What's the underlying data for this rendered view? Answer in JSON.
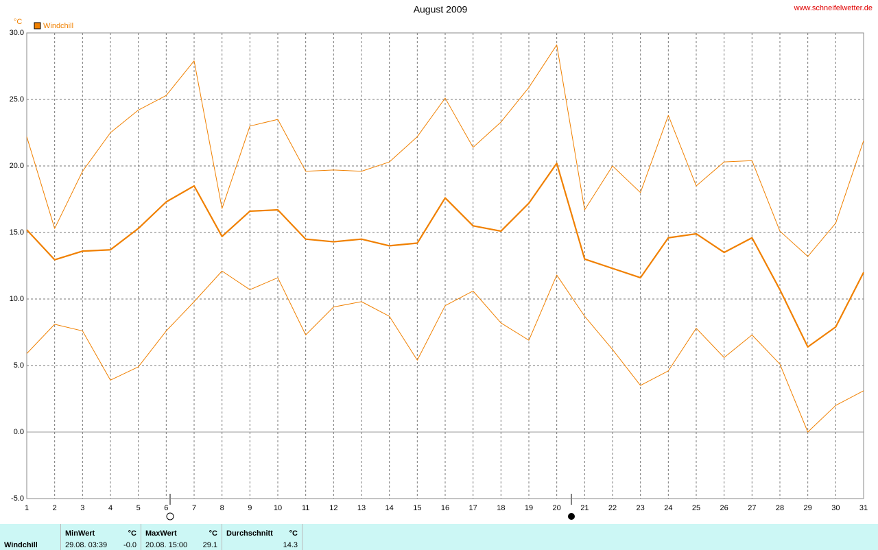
{
  "chart_data": {
    "type": "line",
    "title": "August 2009",
    "source": "www.schneifelwetter.de",
    "y_label": "°C",
    "x": [
      1,
      2,
      3,
      4,
      5,
      6,
      7,
      8,
      9,
      10,
      11,
      12,
      13,
      14,
      15,
      16,
      17,
      18,
      19,
      20,
      21,
      22,
      23,
      24,
      25,
      26,
      27,
      28,
      29,
      30,
      31
    ],
    "series": [
      {
        "name": "Windchill",
        "color": "#f08000",
        "values": [
          15.2,
          12.95,
          13.6,
          13.7,
          15.3,
          17.3,
          18.5,
          14.7,
          16.6,
          16.7,
          14.5,
          14.3,
          14.5,
          14.0,
          14.2,
          17.6,
          15.5,
          15.1,
          17.2,
          20.2,
          13.0,
          12.3,
          11.6,
          14.6,
          14.9,
          13.5,
          14.6,
          10.7,
          6.4,
          7.9,
          12.0
        ]
      },
      {
        "color": "#f08000",
        "values": [
          22.2,
          15.3,
          19.6,
          22.5,
          24.2,
          25.3,
          27.9,
          16.8,
          23.0,
          23.5,
          19.6,
          19.7,
          19.6,
          20.3,
          22.2,
          25.1,
          21.4,
          23.3,
          25.9,
          29.1,
          16.7,
          20.0,
          18.0,
          23.8,
          18.5,
          20.3,
          20.4,
          15.1,
          13.2,
          15.7,
          21.9
        ]
      },
      {
        "color": "#f08000",
        "values": [
          5.9,
          8.1,
          7.6,
          3.9,
          4.9,
          7.6,
          9.8,
          12.1,
          10.7,
          11.6,
          7.3,
          9.4,
          9.8,
          8.7,
          5.4,
          9.5,
          10.6,
          8.2,
          6.9,
          11.8,
          8.7,
          6.2,
          3.5,
          4.6,
          7.8,
          5.6,
          7.3,
          5.1,
          0.0,
          2.0,
          3.1
        ]
      }
    ],
    "xlim": [
      1,
      31
    ],
    "xticks": [
      1,
      2,
      3,
      4,
      5,
      6,
      7,
      8,
      9,
      10,
      11,
      12,
      13,
      14,
      15,
      16,
      17,
      18,
      19,
      20,
      21,
      22,
      23,
      24,
      25,
      26,
      27,
      28,
      29,
      30,
      31
    ],
    "ylim": [
      -5,
      30
    ],
    "yticks": [
      {
        "value": -5,
        "label": "-5.0"
      },
      {
        "value": 0,
        "label": "0.0"
      },
      {
        "value": 5,
        "label": "5.0"
      },
      {
        "value": 10,
        "label": "10.0"
      },
      {
        "value": 15,
        "label": "15.0"
      },
      {
        "value": 20,
        "label": "20.0"
      },
      {
        "value": 25,
        "label": "25.0"
      },
      {
        "value": 30,
        "label": "30.0"
      }
    ],
    "grid": true
  },
  "summary": {
    "name": "Windchill",
    "min": {
      "header": "MinWert",
      "unit": "°C",
      "time": "29.08.  03:39",
      "value": "-0.0"
    },
    "max": {
      "header": "MaxWert",
      "unit": "°C",
      "time": "20.08.  15:00",
      "value": "29.1"
    },
    "avg": {
      "header": "Durchschnitt",
      "unit": "°C",
      "value": "14.3"
    }
  }
}
